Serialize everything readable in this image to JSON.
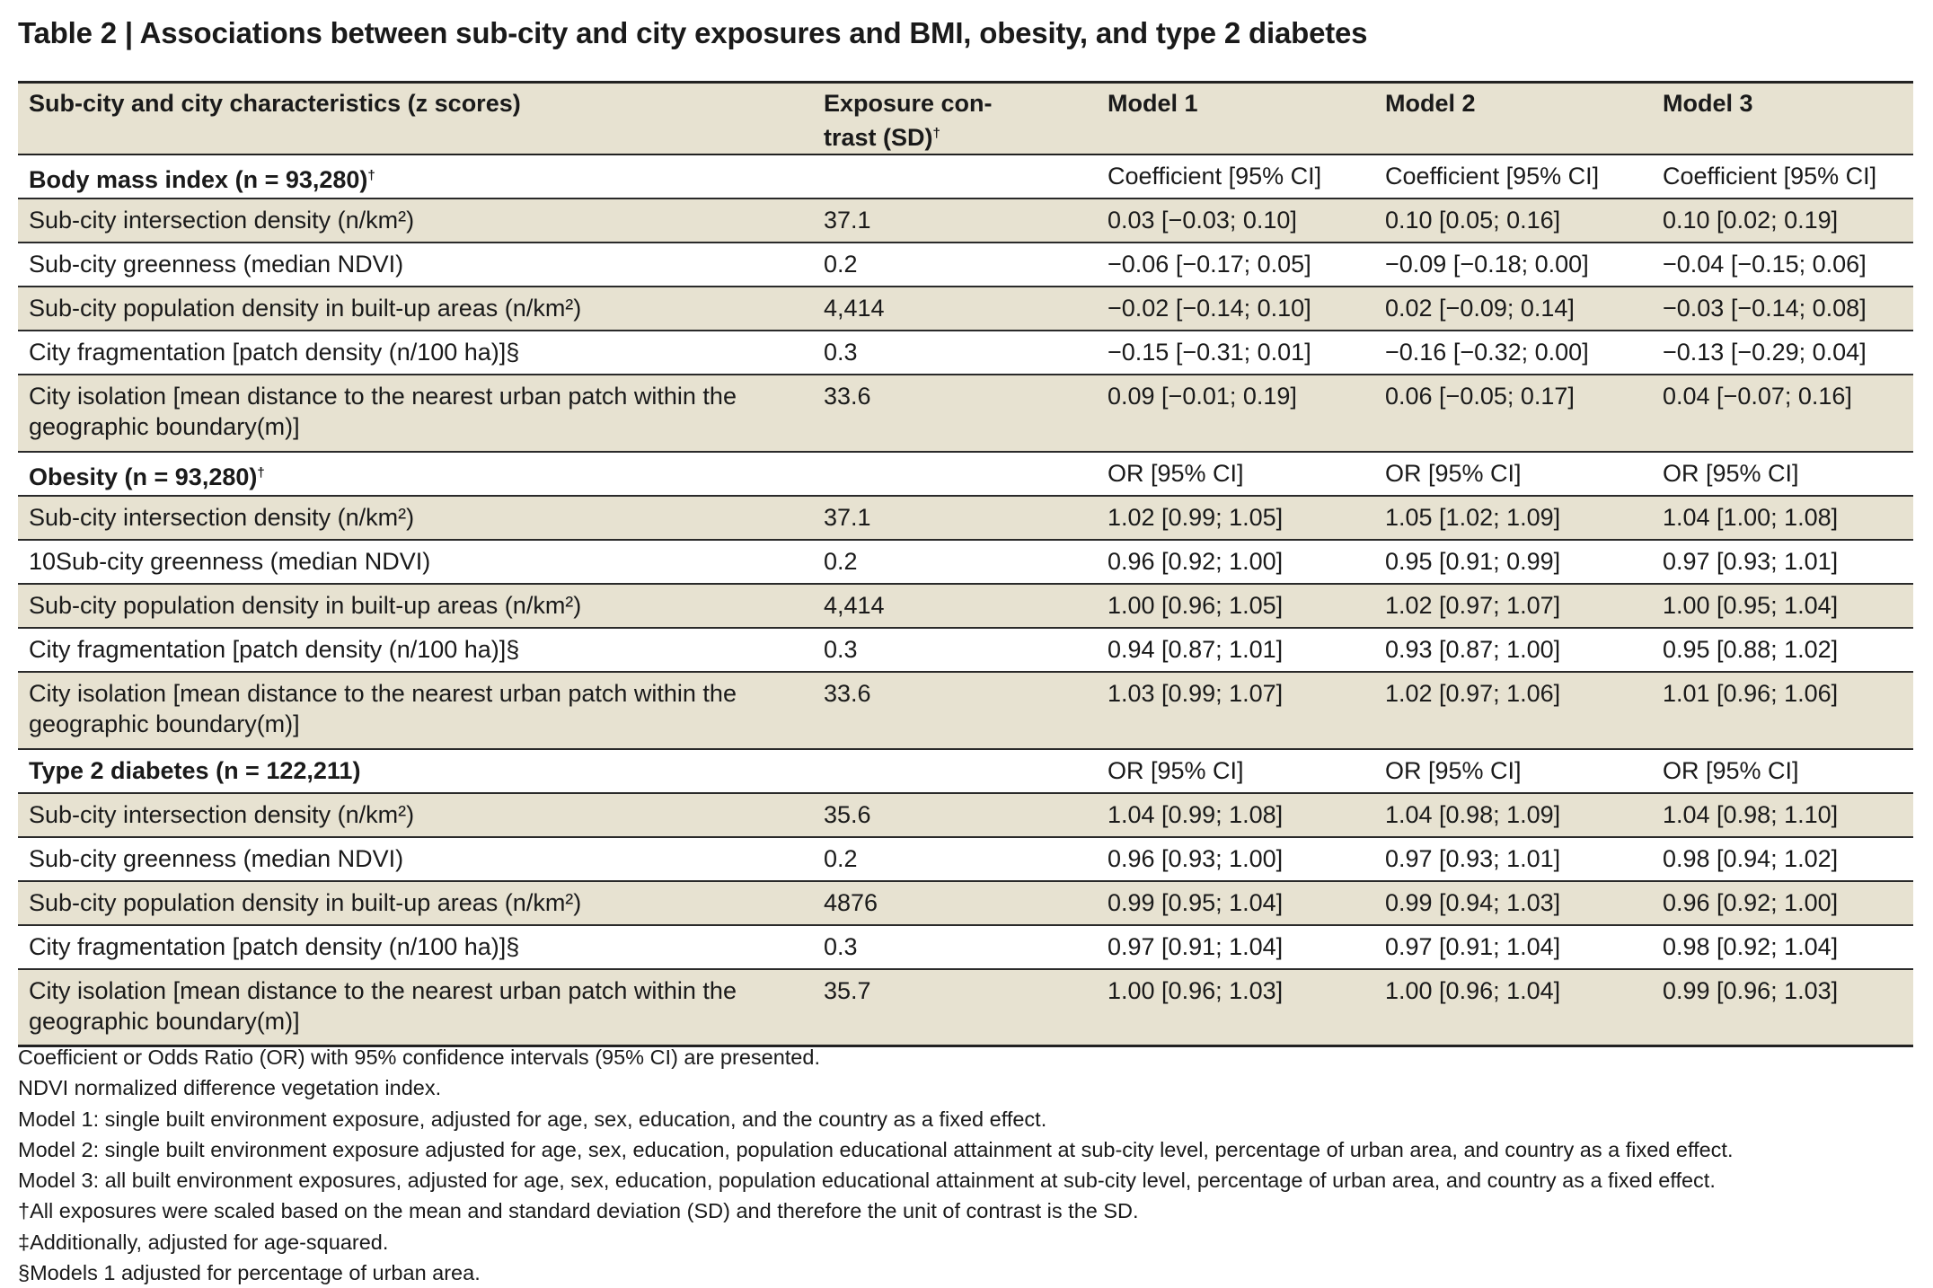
{
  "title": "Table 2 | Associations between sub-city and city exposures and BMI, obesity, and type 2 diabetes",
  "header": {
    "col1": "Sub-city and city characteristics (z scores)",
    "col2_line1": "Exposure con-",
    "col2_line2": "trast (SD)",
    "col2_mark": "†",
    "model1": "Model 1",
    "model2": "Model 2",
    "model3": "Model 3"
  },
  "rows": [
    {
      "label": "Body mass index (n = 93,280)",
      "mark": "†",
      "contrast": "",
      "m1": "Coefficient [95% CI]",
      "m2": "Coefficient [95% CI]",
      "m3": "Coefficient [95% CI]"
    },
    {
      "label": "Sub-city intersection density (n/km²)",
      "contrast": "37.1",
      "m1": "0.03 [−0.03; 0.10]",
      "m2": "0.10 [0.05; 0.16]",
      "m3": "0.10 [0.02; 0.19]"
    },
    {
      "label": "Sub-city greenness (median NDVI)",
      "contrast": "0.2",
      "m1": "−0.06 [−0.17; 0.05]",
      "m2": "−0.09 [−0.18; 0.00]",
      "m3": "−0.04 [−0.15; 0.06]"
    },
    {
      "label": "Sub-city population density in built-up areas (n/km²)",
      "contrast": "4,414",
      "m1": "−0.02 [−0.14; 0.10]",
      "m2": "0.02 [−0.09; 0.14]",
      "m3": "−0.03 [−0.14; 0.08]"
    },
    {
      "label": "City fragmentation [patch density (n/100 ha)]§",
      "contrast": "0.3",
      "m1": "−0.15 [−0.31; 0.01]",
      "m2": "−0.16 [−0.32; 0.00]",
      "m3": "−0.13 [−0.29; 0.04]"
    },
    {
      "label": "City isolation [mean distance to the nearest urban patch within the",
      "label2": "geographic boundary(m)]",
      "contrast": "33.6",
      "m1": "0.09 [−0.01; 0.19]",
      "m2": "0.06 [−0.05; 0.17]",
      "m3": "0.04 [−0.07; 0.16]"
    },
    {
      "label": "Obesity (n = 93,280)",
      "mark": "†",
      "contrast": "",
      "m1": "OR [95% CI]",
      "m2": "OR [95% CI]",
      "m3": "OR [95% CI]"
    },
    {
      "label": "Sub-city intersection density (n/km²)",
      "contrast": "37.1",
      "m1": "1.02 [0.99; 1.05]",
      "m2": "1.05 [1.02; 1.09]",
      "m3": "1.04 [1.00; 1.08]"
    },
    {
      "label": "10Sub-city greenness (median NDVI)",
      "contrast": "0.2",
      "m1": "0.96 [0.92; 1.00]",
      "m2": "0.95 [0.91; 0.99]",
      "m3": "0.97 [0.93; 1.01]"
    },
    {
      "label": "Sub-city population density in built-up areas (n/km²)",
      "contrast": "4,414",
      "m1": "1.00 [0.96; 1.05]",
      "m2": "1.02 [0.97; 1.07]",
      "m3": "1.00 [0.95; 1.04]"
    },
    {
      "label": "City fragmentation [patch density (n/100 ha)]§",
      "contrast": "0.3",
      "m1": "0.94 [0.87; 1.01]",
      "m2": "0.93 [0.87; 1.00]",
      "m3": "0.95 [0.88; 1.02]"
    },
    {
      "label": "City isolation [mean distance to the nearest urban patch within the",
      "label2": "geographic boundary(m)]",
      "contrast": "33.6",
      "m1": "1.03 [0.99; 1.07]",
      "m2": "1.02 [0.97; 1.06]",
      "m3": "1.01 [0.96; 1.06]"
    },
    {
      "label": "Type 2 diabetes (n = 122,211)",
      "contrast": "",
      "m1": "OR [95% CI]",
      "m2": "OR [95% CI]",
      "m3": "OR [95% CI]"
    },
    {
      "label": "Sub-city intersection density (n/km²)",
      "contrast": "35.6",
      "m1": "1.04 [0.99; 1.08]",
      "m2": "1.04 [0.98; 1.09]",
      "m3": "1.04 [0.98; 1.10]"
    },
    {
      "label": "Sub-city greenness (median NDVI)",
      "contrast": "0.2",
      "m1": "0.96 [0.93; 1.00]",
      "m2": "0.97 [0.93; 1.01]",
      "m3": "0.98 [0.94; 1.02]"
    },
    {
      "label": "Sub-city population density in built-up areas (n/km²)",
      "contrast": "4876",
      "m1": "0.99 [0.95; 1.04]",
      "m2": "0.99 [0.94; 1.03]",
      "m3": "0.96 [0.92; 1.00]"
    },
    {
      "label": "City fragmentation [patch density (n/100 ha)]§",
      "contrast": "0.3",
      "m1": "0.97 [0.91; 1.04]",
      "m2": "0.97 [0.91; 1.04]",
      "m3": "0.98 [0.92; 1.04]"
    },
    {
      "label": "City isolation [mean distance to the nearest urban patch within the",
      "label2": "geographic boundary(m)]",
      "contrast": "35.7",
      "m1": "1.00 [0.96; 1.03]",
      "m2": "1.00 [0.96; 1.04]",
      "m3": "0.99 [0.96; 1.03]"
    }
  ],
  "notes": [
    "Coefficient or Odds Ratio (OR) with 95% confidence intervals (95% CI) are presented.",
    "NDVI normalized difference vegetation index.",
    "Model 1: single built environment exposure, adjusted for age, sex, education, and the country as a fixed effect.",
    "Model 2: single built environment exposure adjusted for age, sex, education, population educational attainment at sub-city level, percentage of urban area, and country as a fixed effect.",
    "Model 3: all built environment exposures, adjusted for age, sex, education, population educational attainment at sub-city level, percentage of urban area, and country as a fixed effect.",
    "†All exposures were scaled based on the mean and standard deviation (SD) and therefore the unit of contrast is the SD.",
    "‡Additionally, adjusted for age-squared.",
    "§Models 1 adjusted for percentage of urban area."
  ],
  "colors": {
    "shade": "#e7e2d1",
    "rule": "#222222"
  }
}
